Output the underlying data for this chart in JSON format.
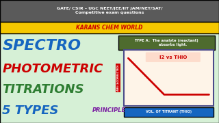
{
  "top_bar_color": "#5a5a5a",
  "top_bar_text": "GATE/ CSIR – UGC NEET/JEE/IIT JAM/NET/SAT/\nCompetitive exam questions",
  "top_bar_text_color": "#ffffff",
  "yellow_bar_color": "#f5c800",
  "yellow_bar_text": "KARANS CHEM WORLD",
  "yellow_bar_text_color": "#cc0000",
  "bg_color": "#d6f0d6",
  "spectro_text": "SPECTRO",
  "spectro_color": "#1565c0",
  "photometric_text": "PHOTOMETRIC",
  "photometric_color": "#cc0000",
  "titrations_text": "TITRATIONS",
  "titrations_color": "#2e7d32",
  "types_text": "5 TYPES",
  "types_color": "#1565c0",
  "principle_text": "PRINCIPLE",
  "principle_color": "#7b1fa2",
  "type_a_box_color": "#4e6b2e",
  "type_a_text": "TYPE A:  The analyte (reactant)\n          absorbs light.",
  "type_a_text_color": "#ffffff",
  "graph_bg_color": "#fef4e8",
  "graph_border_color": "#4a4a8a",
  "graph_line_color": "#cc0000",
  "curve_x": [
    0.05,
    0.45,
    0.5,
    0.95
  ],
  "curve_y": [
    0.85,
    0.2,
    0.2,
    0.2
  ],
  "label_box_color": "#fddccc",
  "label_text": "I2 vs THIO",
  "label_text_color": "#cc0000",
  "y_axis_label": "ABS (ACORRECTED)",
  "x_axis_label": "VOL. OF TITRANT (THIO)",
  "x_axis_label_bg": "#1565c0",
  "x_axis_label_color": "#ffffff"
}
